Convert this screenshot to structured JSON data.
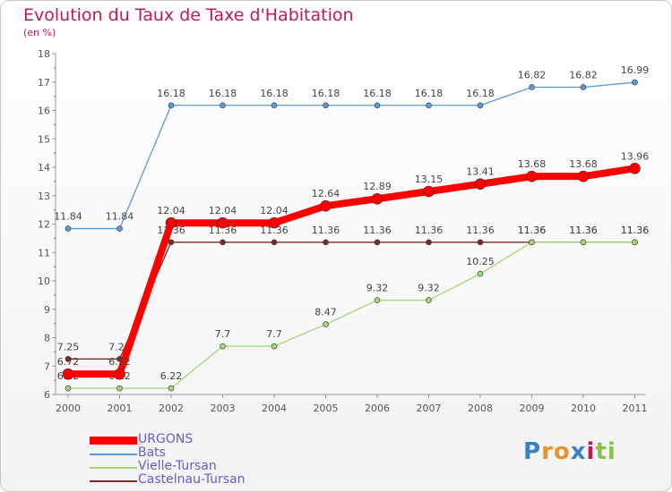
{
  "title": "Evolution du Taux de Taxe d'Habitation",
  "subtitle": "(en %)",
  "logo": {
    "letters": [
      "P",
      "r",
      "o",
      "x",
      "i",
      "t",
      "i"
    ],
    "colors": [
      "#3b7fc4",
      "#e8942a",
      "#e8942a",
      "#3b7fc4",
      "#c2185b",
      "#8bc34a",
      "#8bc34a"
    ]
  },
  "chart_data": {
    "type": "line",
    "x": [
      "2000",
      "2001",
      "2002",
      "2003",
      "2004",
      "2005",
      "2006",
      "2007",
      "2008",
      "2009",
      "2010",
      "2011"
    ],
    "ylim": [
      6,
      18
    ],
    "yticks": [
      6,
      7,
      8,
      9,
      10,
      11,
      12,
      13,
      14,
      15,
      16,
      17,
      18
    ],
    "grid": false,
    "legend_position": "bottom-left",
    "series": [
      {
        "name": "Castelnau-Tursan",
        "color": "#7b2a2a",
        "width": 1.3,
        "values": [
          7.25,
          7.25,
          11.36,
          11.36,
          11.36,
          11.36,
          11.36,
          11.36,
          11.36,
          11.36,
          11.36,
          11.36
        ],
        "labels": [
          "7.25",
          "7.25",
          "11.36",
          "11.36",
          "11.36",
          "11.36",
          "11.36",
          "11.36",
          "11.36",
          "11.36",
          "11.36",
          "11.36"
        ]
      },
      {
        "name": "Vielle-Tursan",
        "color": "#a5d67a",
        "width": 1.3,
        "values": [
          6.22,
          6.22,
          6.22,
          7.7,
          7.7,
          8.47,
          9.32,
          9.32,
          10.25,
          11.36,
          11.36,
          11.36
        ],
        "labels": [
          "6.22",
          "6.22",
          "6.22",
          "7.7",
          "7.7",
          "8.47",
          "9.32",
          "9.32",
          "10.25",
          "11.36",
          "11.36",
          "11.36"
        ]
      },
      {
        "name": "Bats",
        "color": "#5b9bd5",
        "width": 1.3,
        "values": [
          11.84,
          11.84,
          16.18,
          16.18,
          16.18,
          16.18,
          16.18,
          16.18,
          16.18,
          16.82,
          16.82,
          16.99
        ],
        "labels": [
          "11.84",
          "11.84",
          "16.18",
          "16.18",
          "16.18",
          "16.18",
          "16.18",
          "16.18",
          "16.18",
          "16.82",
          "16.82",
          "16.99"
        ]
      },
      {
        "name": "URGONS",
        "color": "#ff0000",
        "width": 8,
        "values": [
          6.72,
          6.72,
          12.04,
          12.04,
          12.04,
          12.64,
          12.89,
          13.15,
          13.41,
          13.68,
          13.68,
          13.96
        ],
        "labels": [
          "6.72",
          "6.72",
          "12.04",
          "12.04",
          "12.04",
          "12.64",
          "12.89",
          "13.15",
          "13.41",
          "13.68",
          "13.68",
          "13.96"
        ]
      }
    ],
    "legend": [
      "URGONS",
      "Bats",
      "Vielle-Tursan",
      "Castelnau-Tursan"
    ]
  }
}
